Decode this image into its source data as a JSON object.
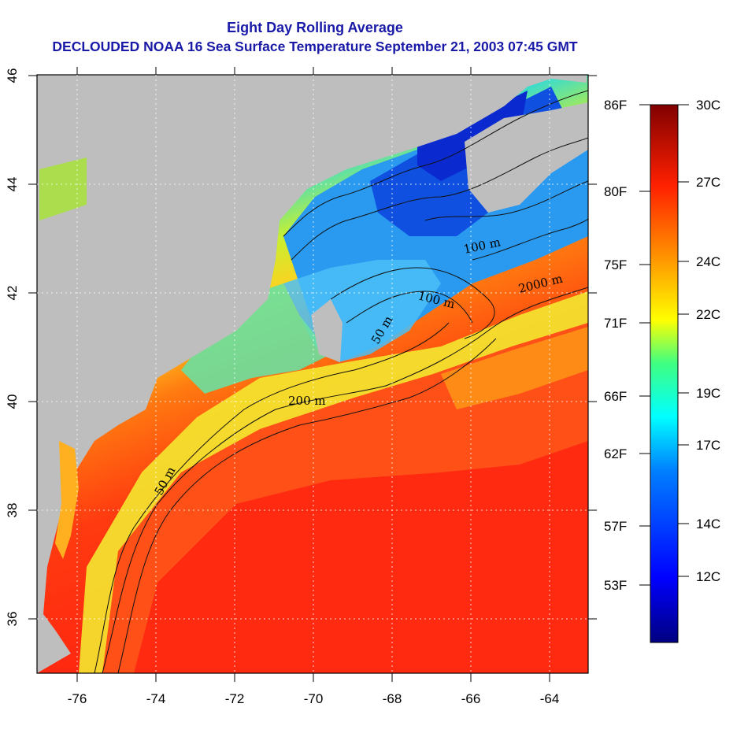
{
  "title": "Eight Day Rolling Average",
  "subtitle": "DECLOUDED NOAA 16 Sea Surface Temperature September 21, 2003 07:45 GMT",
  "map": {
    "lon_ticks": [
      "-76",
      "-74",
      "-72",
      "-70",
      "-68",
      "-66",
      "-64"
    ],
    "lat_ticks": [
      "36",
      "38",
      "40",
      "42",
      "44",
      "46"
    ],
    "contour_labels": [
      "50 m",
      "200 m",
      "2000 m",
      "100 m",
      "100 m",
      "50 m"
    ],
    "land_color": "#bebebe",
    "warm_color": "#ff2a10",
    "cold_color": "#1040e0"
  },
  "fahrenheit_labels": [
    "86F",
    "80F",
    "75F",
    "71F",
    "66F",
    "62F",
    "57F",
    "53F"
  ],
  "celsius_labels": [
    "30C",
    "27C",
    "24C",
    "22C",
    "19C",
    "17C",
    "14C",
    "12C"
  ],
  "colorbar": {
    "colors": [
      "#000080",
      "#0000ff",
      "#00ffff",
      "#ffff00",
      "#ff8000",
      "#ff0000",
      "#800000"
    ]
  }
}
